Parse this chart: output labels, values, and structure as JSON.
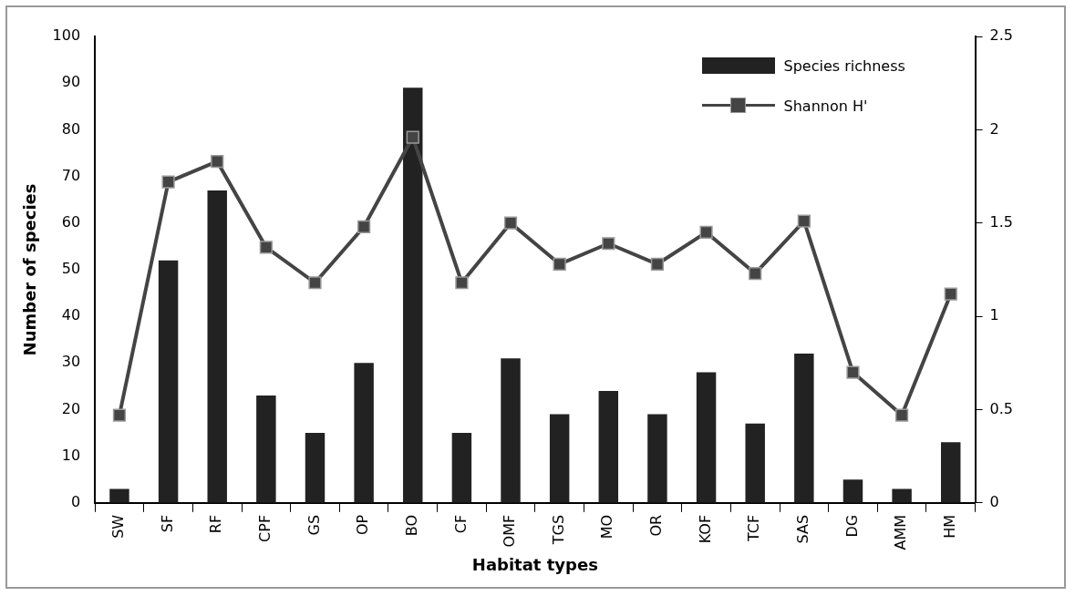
{
  "chart_data": {
    "type": "bar",
    "xlabel": "Habitat types",
    "ylabel": "Number of species",
    "categories": [
      "SW",
      "SF",
      "RF",
      "CPF",
      "GS",
      "OP",
      "BO",
      "CF",
      "OMF",
      "TGS",
      "MO",
      "OR",
      "KOF",
      "TCF",
      "SAS",
      "DG",
      "AMM",
      "HM"
    ],
    "series": [
      {
        "name": "Species richness",
        "color": "#222222",
        "values": [
          3,
          52,
          67,
          23,
          15,
          30,
          89,
          15,
          31,
          19,
          24,
          19,
          28,
          17,
          32,
          5,
          3,
          13
        ]
      },
      {
        "name": "Shannon H'",
        "type": "line",
        "axis": "y2",
        "color": "#444444",
        "marker": "square",
        "values": [
          0.47,
          1.72,
          1.83,
          1.37,
          1.18,
          1.48,
          1.96,
          1.18,
          1.5,
          1.28,
          1.39,
          1.28,
          1.45,
          1.23,
          1.51,
          0.7,
          0.47,
          1.12
        ]
      }
    ],
    "ylim": [
      0,
      100
    ],
    "yticks": [
      0,
      10,
      20,
      30,
      40,
      50,
      60,
      70,
      80,
      90,
      100
    ],
    "y2lim": [
      0,
      2.5
    ],
    "y2ticks": [
      0,
      0.5,
      1,
      1.5,
      2,
      2.5
    ],
    "legend": "top right"
  }
}
